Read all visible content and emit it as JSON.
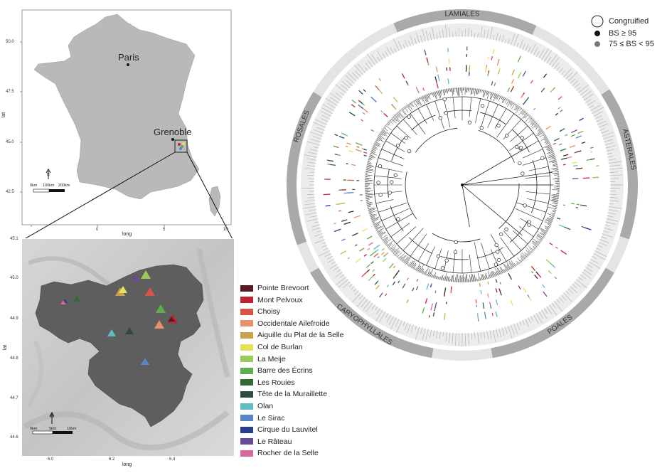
{
  "france_map": {
    "cities": [
      {
        "name": "Paris"
      },
      {
        "name": "Grenoble"
      }
    ],
    "x_axis_title": "long",
    "y_axis_title": "lat",
    "x_ticks": [
      "0",
      "5",
      "10"
    ],
    "y_ticks": [
      "50.0",
      "47.5",
      "45.0",
      "42.5"
    ],
    "scale_labels": [
      "0km",
      "100km",
      "200km"
    ],
    "north_label": "N"
  },
  "inset_map": {
    "x_axis_title": "long",
    "y_axis_title": "lat",
    "x_ticks": [
      "6.0",
      "6.2",
      "6.4"
    ],
    "y_ticks": [
      "45.1",
      "45.0",
      "44.9",
      "44.8",
      "44.7",
      "44.6"
    ],
    "scale_labels": [
      "0km",
      "5km",
      "10km"
    ],
    "north_label": "N"
  },
  "sites_legend": [
    {
      "label": "Pointe Brevoort",
      "color": "#5a1a22"
    },
    {
      "label": "Mont Pelvoux",
      "color": "#c0212f"
    },
    {
      "label": "Choisy",
      "color": "#d9534a"
    },
    {
      "label": "Occidentale Ailefroide",
      "color": "#e89066"
    },
    {
      "label": "Aiguille du Plat de la Selle",
      "color": "#c9a24d"
    },
    {
      "label": "Col de Burlan",
      "color": "#e5e15a"
    },
    {
      "label": "La Meije",
      "color": "#9cc95b"
    },
    {
      "label": "Barre des Écrins",
      "color": "#5fae4e"
    },
    {
      "label": "Les Rouies",
      "color": "#2f6a34"
    },
    {
      "label": "Tête de la Muraillette",
      "color": "#2f4b40"
    },
    {
      "label": "Olan",
      "color": "#5fbcc0"
    },
    {
      "label": "Le Sirac",
      "color": "#5b86c6"
    },
    {
      "label": "Cirque du Lauvitel",
      "color": "#2a3f8a"
    },
    {
      "label": "Le Râteau",
      "color": "#6a4b9a"
    },
    {
      "label": "Rocher de la Selle",
      "color": "#d866a0"
    }
  ],
  "tree": {
    "clades": [
      "LAMIALES",
      "ASTERALES",
      "POALES",
      "CARYOPHYLLALES",
      "ROSALES"
    ],
    "legend": [
      {
        "label": "Congruified",
        "marker": "open-circle"
      },
      {
        "label": "BS ≥  95",
        "marker": "black-dot"
      },
      {
        "label": "75 ≤ BS < 95",
        "marker": "grey-dot"
      }
    ]
  }
}
